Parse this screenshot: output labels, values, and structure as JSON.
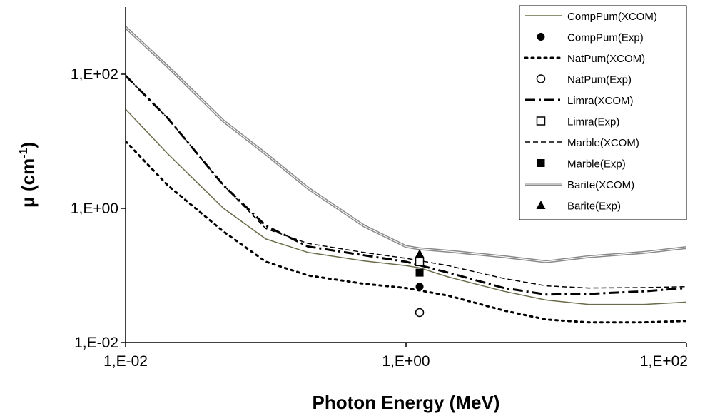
{
  "chart_data": {
    "type": "line",
    "x_scale": "log",
    "y_scale": "log",
    "xlabel": "Photon Energy (MeV)",
    "ylabel_base": "μ (cm",
    "ylabel_sup": "-1",
    "ylabel_close": ")",
    "xlim": [
      0.01,
      100
    ],
    "ylim": [
      0.01,
      1000
    ],
    "xticks": [
      0.01,
      1,
      100
    ],
    "xtick_labels": [
      "1,E-02",
      "1,E+00",
      "1,E+02"
    ],
    "yticks": [
      0.01,
      1,
      100
    ],
    "ytick_labels": [
      "1,E-02",
      "1,E+00",
      "1,E+02"
    ],
    "grid": false,
    "legend_position": "top-right",
    "series": [
      {
        "name": "CompPum(XCOM)",
        "kind": "line",
        "color": "#6b6b4a",
        "style": "solid",
        "x": [
          0.01,
          0.02,
          0.05,
          0.1,
          0.2,
          0.5,
          1,
          1.25,
          2,
          5,
          10,
          20,
          50,
          100
        ],
        "y": [
          30,
          6.5,
          1.0,
          0.35,
          0.22,
          0.165,
          0.14,
          0.13,
          0.095,
          0.058,
          0.043,
          0.037,
          0.037,
          0.04
        ]
      },
      {
        "name": "CompPum(Exp)",
        "kind": "marker",
        "marker": "filled-circle",
        "color": "#000000",
        "x": [
          1.25
        ],
        "y": [
          0.068
        ]
      },
      {
        "name": "NatPum(XCOM)",
        "kind": "line",
        "color": "#000000",
        "style": "dotted",
        "x": [
          0.01,
          0.02,
          0.05,
          0.1,
          0.2,
          0.5,
          1,
          2,
          5,
          10,
          20,
          50,
          100
        ],
        "y": [
          10,
          2.2,
          0.45,
          0.16,
          0.1,
          0.075,
          0.065,
          0.05,
          0.03,
          0.022,
          0.02,
          0.02,
          0.021
        ]
      },
      {
        "name": "NatPum(Exp)",
        "kind": "marker",
        "marker": "open-circle",
        "color": "#000000",
        "x": [
          1.25
        ],
        "y": [
          0.028
        ]
      },
      {
        "name": "Limra(XCOM)",
        "kind": "line",
        "color": "#000000",
        "style": "dashdot",
        "x": [
          0.01,
          0.02,
          0.05,
          0.1,
          0.2,
          0.5,
          1,
          2,
          5,
          10,
          20,
          50,
          100
        ],
        "y": [
          95,
          22,
          2.2,
          0.55,
          0.27,
          0.2,
          0.16,
          0.11,
          0.065,
          0.052,
          0.053,
          0.058,
          0.065
        ]
      },
      {
        "name": "Limra(Exp)",
        "kind": "marker",
        "marker": "open-square",
        "color": "#000000",
        "x": [
          1.25
        ],
        "y": [
          0.16
        ]
      },
      {
        "name": "Marble(XCOM)",
        "kind": "line",
        "color": "#000000",
        "style": "dashed",
        "x": [
          0.01,
          0.02,
          0.05,
          0.1,
          0.2,
          0.5,
          1,
          2,
          5,
          10,
          20,
          50,
          100
        ],
        "y": [
          95,
          22,
          2.2,
          0.5,
          0.3,
          0.22,
          0.18,
          0.14,
          0.09,
          0.07,
          0.065,
          0.066,
          0.068
        ]
      },
      {
        "name": "Marble(Exp)",
        "kind": "marker",
        "marker": "filled-square",
        "color": "#000000",
        "x": [
          1.25
        ],
        "y": [
          0.11
        ]
      },
      {
        "name": "Barite(XCOM)",
        "kind": "line",
        "color": "#8a8a8a",
        "style": "double",
        "x": [
          0.01,
          0.02,
          0.05,
          0.1,
          0.2,
          0.5,
          1,
          1.25,
          2,
          5,
          10,
          20,
          50,
          100
        ],
        "y": [
          500,
          130,
          20,
          6.5,
          2.0,
          0.55,
          0.27,
          0.25,
          0.23,
          0.19,
          0.16,
          0.19,
          0.22,
          0.26
        ]
      },
      {
        "name": "Barite(Exp)",
        "kind": "marker",
        "marker": "filled-triangle",
        "color": "#000000",
        "x": [
          1.25
        ],
        "y": [
          0.21
        ]
      }
    ]
  }
}
